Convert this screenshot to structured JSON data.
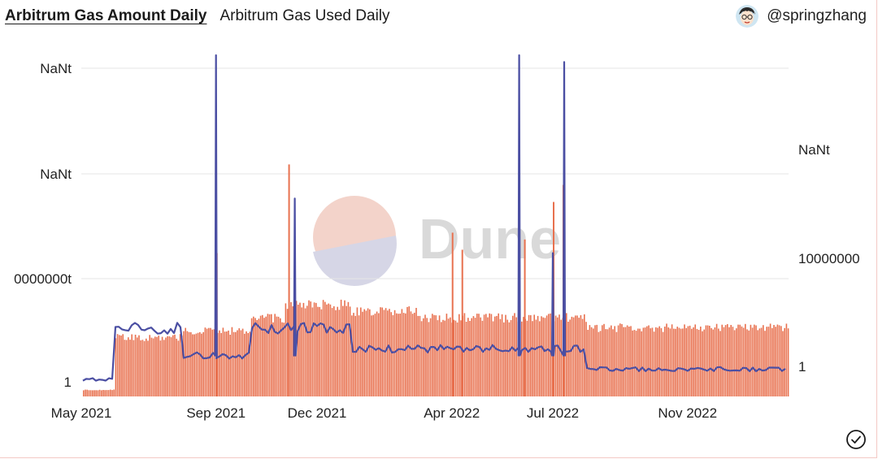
{
  "tabs": [
    {
      "label": "Arbitrum Gas Amount Daily",
      "active": true
    },
    {
      "label": "Arbitrum Gas Used Daily",
      "active": false
    }
  ],
  "author": {
    "name": "@springzhang",
    "icon": "avatar-icon"
  },
  "watermark": {
    "text": "Dune"
  },
  "status_icon": "check-circle-icon",
  "colors": {
    "bars": "#e8714f",
    "line": "#4b4fa3",
    "grid": "#e6e6e6",
    "watermark_top": "#f3d3ca",
    "watermark_bottom": "#d6d6e6"
  },
  "chart_data": {
    "type": "bar",
    "combo": true,
    "title": "",
    "x_tick_labels": [
      "May 2021",
      "Sep 2021",
      "Dec 2021",
      "Apr 2022",
      "Jul 2022",
      "Nov 2022"
    ],
    "left_axis_tick_labels": [
      "1",
      "0000000t",
      "NaNt",
      "NaNt"
    ],
    "right_axis_tick_labels": [
      "1",
      "10000000",
      "NaNt"
    ],
    "grid": true,
    "series": [
      {
        "type": "bar",
        "axis": "right",
        "segments": [
          {
            "from": "May 2021",
            "to": "Jun 2021",
            "level": 0.02
          },
          {
            "from": "Jun 2021",
            "to": "Aug 2021",
            "level": 0.18
          },
          {
            "from": "Aug 2021",
            "to": "Oct 2021",
            "level": 0.2
          },
          {
            "from": "Oct 2021",
            "to": "Nov 2021",
            "level": 0.24
          },
          {
            "from": "Nov 2021",
            "to": "Jan 2022",
            "level": 0.28
          },
          {
            "from": "Jan 2022",
            "to": "Mar 2022",
            "level": 0.26
          },
          {
            "from": "Mar 2022",
            "to": "Aug 2022",
            "level": 0.24
          },
          {
            "from": "Aug 2022",
            "to": "Feb 2023",
            "level": 0.21
          }
        ],
        "spikes": [
          {
            "date": "Sep 2021",
            "level": 0.42
          },
          {
            "date": "Nov 2021",
            "level": 0.68
          },
          {
            "date": "Apr 2022",
            "level": 0.43
          },
          {
            "date": "Apr 2022",
            "level": 0.48
          },
          {
            "date": "Jun 2022",
            "level": 0.46
          },
          {
            "date": "Jul 2022",
            "level": 0.62
          },
          {
            "date": "Jul 2022",
            "level": 0.57
          }
        ]
      },
      {
        "type": "line",
        "axis": "left",
        "segments": [
          {
            "from": "May 2021",
            "to": "Jun 2021",
            "level": 0.05
          },
          {
            "from": "Jun 2021",
            "to": "Aug 2021",
            "level": 0.2
          },
          {
            "from": "Aug 2021",
            "to": "Oct 2021",
            "level": 0.12
          },
          {
            "from": "Oct 2021",
            "to": "Jan 2022",
            "level": 0.2
          },
          {
            "from": "Jan 2022",
            "to": "Aug 2022",
            "level": 0.14
          },
          {
            "from": "Aug 2022",
            "to": "Feb 2023",
            "level": 0.08
          }
        ],
        "spikes": [
          {
            "date": "Sep 2021",
            "level": 1.0
          },
          {
            "date": "Nov 2021",
            "level": 0.58
          },
          {
            "date": "Jun 2022",
            "level": 1.0
          },
          {
            "date": "Jul 2022",
            "level": 0.98
          },
          {
            "date": "Jul 2022",
            "level": 0.42
          }
        ]
      }
    ]
  }
}
